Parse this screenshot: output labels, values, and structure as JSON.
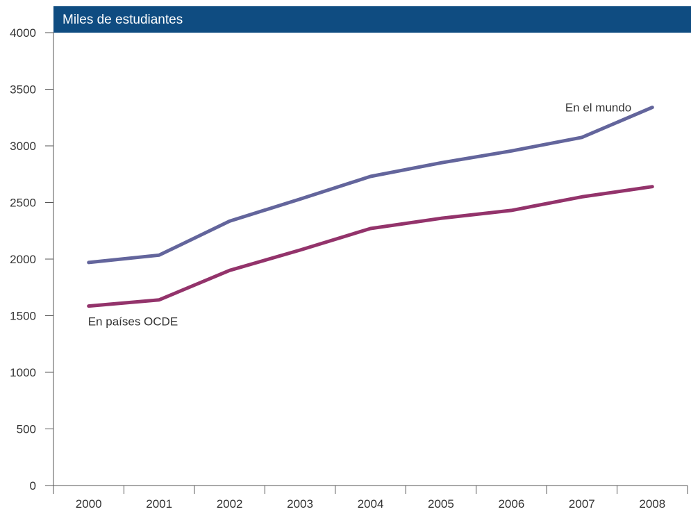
{
  "chart_data": {
    "type": "line",
    "title": "Miles de estudiantes",
    "xlabel": "",
    "ylabel": "",
    "categories": [
      "2000",
      "2001",
      "2002",
      "2003",
      "2004",
      "2005",
      "2006",
      "2007",
      "2008"
    ],
    "ylim": [
      0,
      4000
    ],
    "yticks": [
      0,
      500,
      1000,
      1500,
      2000,
      2500,
      3000,
      3500,
      4000
    ],
    "grid": false,
    "series": [
      {
        "name": "En el mundo",
        "color": "#63659c",
        "values": [
          1970,
          2035,
          2335,
          2530,
          2730,
          2850,
          2955,
          3075,
          3340
        ]
      },
      {
        "name": "En países OCDE",
        "color": "#93336b",
        "values": [
          1585,
          1640,
          1900,
          2080,
          2270,
          2360,
          2430,
          2550,
          2640
        ]
      }
    ]
  }
}
